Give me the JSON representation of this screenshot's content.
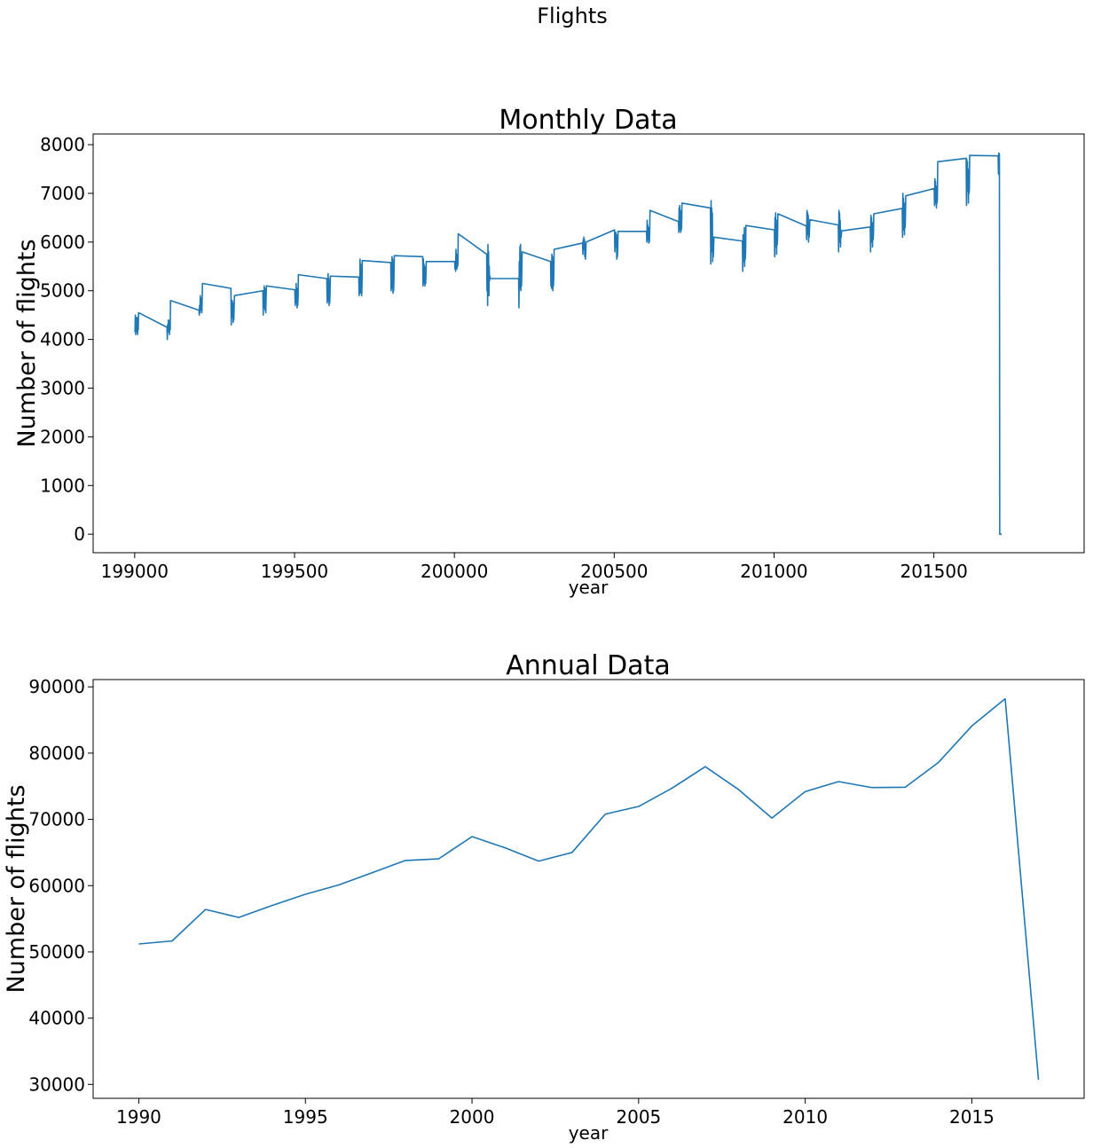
{
  "figure": {
    "suptitle": "Flights"
  },
  "colors": {
    "line": "#1f77b4"
  },
  "chart_data": [
    {
      "type": "line",
      "title": "Monthly Data",
      "xlabel": "year",
      "ylabel": "Number of flights",
      "xlim": [
        198870,
        201970
      ],
      "ylim": [
        -380,
        8220
      ],
      "xticks": [
        199000,
        199500,
        200000,
        200500,
        201000,
        201500
      ],
      "yticks": [
        0,
        1000,
        2000,
        3000,
        4000,
        5000,
        6000,
        7000,
        8000
      ],
      "grid": false,
      "legend": "none",
      "x": [
        199001,
        199002,
        199003,
        199004,
        199005,
        199006,
        199007,
        199008,
        199009,
        199010,
        199011,
        199012,
        199101,
        199102,
        199103,
        199104,
        199105,
        199106,
        199107,
        199108,
        199109,
        199110,
        199111,
        199112,
        199201,
        199202,
        199203,
        199204,
        199205,
        199206,
        199207,
        199208,
        199209,
        199210,
        199211,
        199212,
        199301,
        199302,
        199303,
        199304,
        199305,
        199306,
        199307,
        199308,
        199309,
        199310,
        199311,
        199312,
        199401,
        199402,
        199403,
        199404,
        199405,
        199406,
        199407,
        199408,
        199409,
        199410,
        199411,
        199412,
        199501,
        199502,
        199503,
        199504,
        199505,
        199506,
        199507,
        199508,
        199509,
        199510,
        199511,
        199512,
        199601,
        199602,
        199603,
        199604,
        199605,
        199606,
        199607,
        199608,
        199609,
        199610,
        199611,
        199612,
        199701,
        199702,
        199703,
        199704,
        199705,
        199706,
        199707,
        199708,
        199709,
        199710,
        199711,
        199712,
        199801,
        199802,
        199803,
        199804,
        199805,
        199806,
        199807,
        199808,
        199809,
        199810,
        199811,
        199812,
        199901,
        199902,
        199903,
        199904,
        199905,
        199906,
        199907,
        199908,
        199909,
        199910,
        199911,
        199912,
        200001,
        200002,
        200003,
        200004,
        200005,
        200006,
        200007,
        200008,
        200009,
        200010,
        200011,
        200012,
        200101,
        200102,
        200103,
        200104,
        200105,
        200106,
        200107,
        200108,
        200109,
        200110,
        200111,
        200112,
        200201,
        200202,
        200203,
        200204,
        200205,
        200206,
        200207,
        200208,
        200209,
        200210,
        200211,
        200212,
        200301,
        200302,
        200303,
        200304,
        200305,
        200306,
        200307,
        200308,
        200309,
        200310,
        200311,
        200312,
        200401,
        200402,
        200403,
        200404,
        200405,
        200406,
        200407,
        200408,
        200409,
        200410,
        200411,
        200412,
        200501,
        200502,
        200503,
        200504,
        200505,
        200506,
        200507,
        200508,
        200509,
        200510,
        200511,
        200512,
        200601,
        200602,
        200603,
        200604,
        200605,
        200606,
        200607,
        200608,
        200609,
        200610,
        200611,
        200612,
        200701,
        200702,
        200703,
        200704,
        200705,
        200706,
        200707,
        200708,
        200709,
        200710,
        200711,
        200712,
        200801,
        200802,
        200803,
        200804,
        200805,
        200806,
        200807,
        200808,
        200809,
        200810,
        200811,
        200812,
        200901,
        200902,
        200903,
        200904,
        200905,
        200906,
        200907,
        200908,
        200909,
        200910,
        200911,
        200912,
        201001,
        201002,
        201003,
        201004,
        201005,
        201006,
        201007,
        201008,
        201009,
        201010,
        201011,
        201012,
        201101,
        201102,
        201103,
        201104,
        201105,
        201106,
        201107,
        201108,
        201109,
        201110,
        201111,
        201112,
        201201,
        201202,
        201203,
        201204,
        201205,
        201206,
        201207,
        201208,
        201209,
        201210,
        201211,
        201212,
        201301,
        201302,
        201303,
        201304,
        201305,
        201306,
        201307,
        201308,
        201309,
        201310,
        201311,
        201312,
        201401,
        201402,
        201403,
        201404,
        201405,
        201406,
        201407,
        201408,
        201409,
        201410,
        201411,
        201412,
        201501,
        201502,
        201503,
        201504,
        201505,
        201506,
        201507,
        201508,
        201509,
        201510,
        201511,
        201512,
        201601,
        201602,
        201603,
        201604,
        201605,
        201606,
        201607,
        201608,
        201609,
        201610,
        201611,
        201612,
        201701,
        201702,
        201703,
        201704,
        201705,
        201706,
        201707,
        201708,
        201709,
        201710,
        201711,
        201712
      ],
      "series": [
        {
          "values": [
            4150,
            4500,
            4100,
            4450,
            4200,
            4300,
            4150,
            4450,
            4100,
            4350,
            4200,
            4550,
            4250,
            4000,
            4300,
            4150,
            4400,
            4250,
            4200,
            4300,
            4100,
            4400,
            4200,
            4800,
            4600,
            4500,
            4700,
            4550,
            4900,
            4650,
            4850,
            4600,
            4700,
            4550,
            4800,
            5150,
            5050,
            4300,
            4700,
            4450,
            4800,
            4550,
            4750,
            4350,
            4600,
            4400,
            4650,
            4900,
            5000,
            4500,
            4950,
            4650,
            5100,
            4750,
            5050,
            4600,
            4900,
            4550,
            4850,
            5100,
            5020,
            4700,
            5000,
            4750,
            5150,
            4800,
            5050,
            4650,
            4900,
            4700,
            4850,
            5330,
            5250,
            4750,
            5200,
            4800,
            5350,
            4850,
            5250,
            4700,
            5000,
            4750,
            4950,
            5300,
            5280,
            4900,
            5250,
            4950,
            5650,
            5000,
            5550,
            4950,
            5200,
            4900,
            5100,
            5620,
            5580,
            5000,
            5550,
            5050,
            5700,
            5100,
            5650,
            4950,
            5300,
            5000,
            5250,
            5720,
            5700,
            5100,
            5650,
            5150,
            5550,
            5200,
            5500,
            5100,
            5350,
            5150,
            5300,
            5600,
            5600,
            5450,
            5550,
            5400,
            5850,
            5500,
            5750,
            5450,
            5600,
            5500,
            5550,
            6170,
            5750,
            5000,
            5700,
            4700,
            5950,
            5100,
            5800,
            4900,
            5500,
            5200,
            5300,
            5250,
            5250,
            4650,
            5600,
            5050,
            5900,
            5100,
            5950,
            5000,
            5500,
            5100,
            5400,
            5800,
            5600,
            5100,
            5500,
            5050,
            5750,
            5150,
            5700,
            5000,
            5400,
            5100,
            5300,
            5850,
            5980,
            5750,
            6050,
            5850,
            6100,
            5900,
            6050,
            5700,
            5900,
            5650,
            5800,
            6000,
            6250,
            5800,
            6100,
            5900,
            6200,
            5950,
            6150,
            5650,
            5950,
            5700,
            5850,
            6220,
            6220,
            6000,
            6450,
            6050,
            6350,
            6100,
            6300,
            5980,
            6100,
            6000,
            6200,
            6650,
            6420,
            6200,
            6700,
            6300,
            6750,
            6250,
            6650,
            6200,
            6400,
            6250,
            6350,
            6800,
            6700,
            5550,
            6850,
            6000,
            6700,
            5800,
            6600,
            5600,
            6100,
            5700,
            5900,
            6100,
            6020,
            5400,
            6150,
            5600,
            6050,
            5700,
            6300,
            5500,
            5900,
            5650,
            5800,
            6340,
            6250,
            5700,
            6500,
            5900,
            6600,
            6000,
            6450,
            5750,
            6200,
            5950,
            6100,
            6580,
            6330,
            6050,
            6650,
            6150,
            6600,
            6200,
            6550,
            6000,
            6300,
            6100,
            6250,
            6460,
            6350,
            5800,
            6650,
            6000,
            6600,
            6200,
            6450,
            5900,
            6250,
            6100,
            6200,
            6230,
            6310,
            5800,
            6550,
            6000,
            6500,
            6150,
            6400,
            5900,
            6200,
            6050,
            6150,
            6580,
            6690,
            6100,
            7000,
            6250,
            6900,
            6350,
            6800,
            6150,
            6550,
            6300,
            6500,
            6950,
            7100,
            6750,
            7300,
            6800,
            7250,
            6850,
            7150,
            6700,
            7000,
            6800,
            6900,
            7650,
            7720,
            6750,
            7700,
            7050,
            7650,
            7150,
            7500,
            6800,
            7200,
            7000,
            7100,
            7780,
            7770,
            7400,
            7830,
            7380,
            7810,
            0,
            0,
            0,
            0,
            0,
            0,
            0
          ]
        }
      ]
    },
    {
      "type": "line",
      "title": "Annual Data",
      "xlabel": "year",
      "ylabel": "Number of flights",
      "xlim": [
        1988.63,
        2018.37
      ],
      "ylim": [
        27900,
        91100
      ],
      "xticks": [
        1990,
        1995,
        2000,
        2005,
        2010,
        2015
      ],
      "yticks": [
        30000,
        40000,
        50000,
        60000,
        70000,
        80000,
        90000
      ],
      "grid": false,
      "legend": "none",
      "x": [
        1990,
        1991,
        1992,
        1993,
        1994,
        1995,
        1996,
        1997,
        1998,
        1999,
        2000,
        2001,
        2002,
        2003,
        2004,
        2005,
        2006,
        2007,
        2008,
        2009,
        2010,
        2011,
        2012,
        2013,
        2014,
        2015,
        2016,
        2017
      ],
      "series": [
        {
          "values": [
            51200,
            51650,
            56400,
            55200,
            57000,
            58700,
            60100,
            61950,
            63800,
            64050,
            67400,
            65700,
            63700,
            65000,
            70800,
            71950,
            74700,
            77950,
            74500,
            70200,
            74200,
            75700,
            74800,
            74850,
            78600,
            84100,
            88200,
            30700
          ]
        }
      ]
    }
  ]
}
